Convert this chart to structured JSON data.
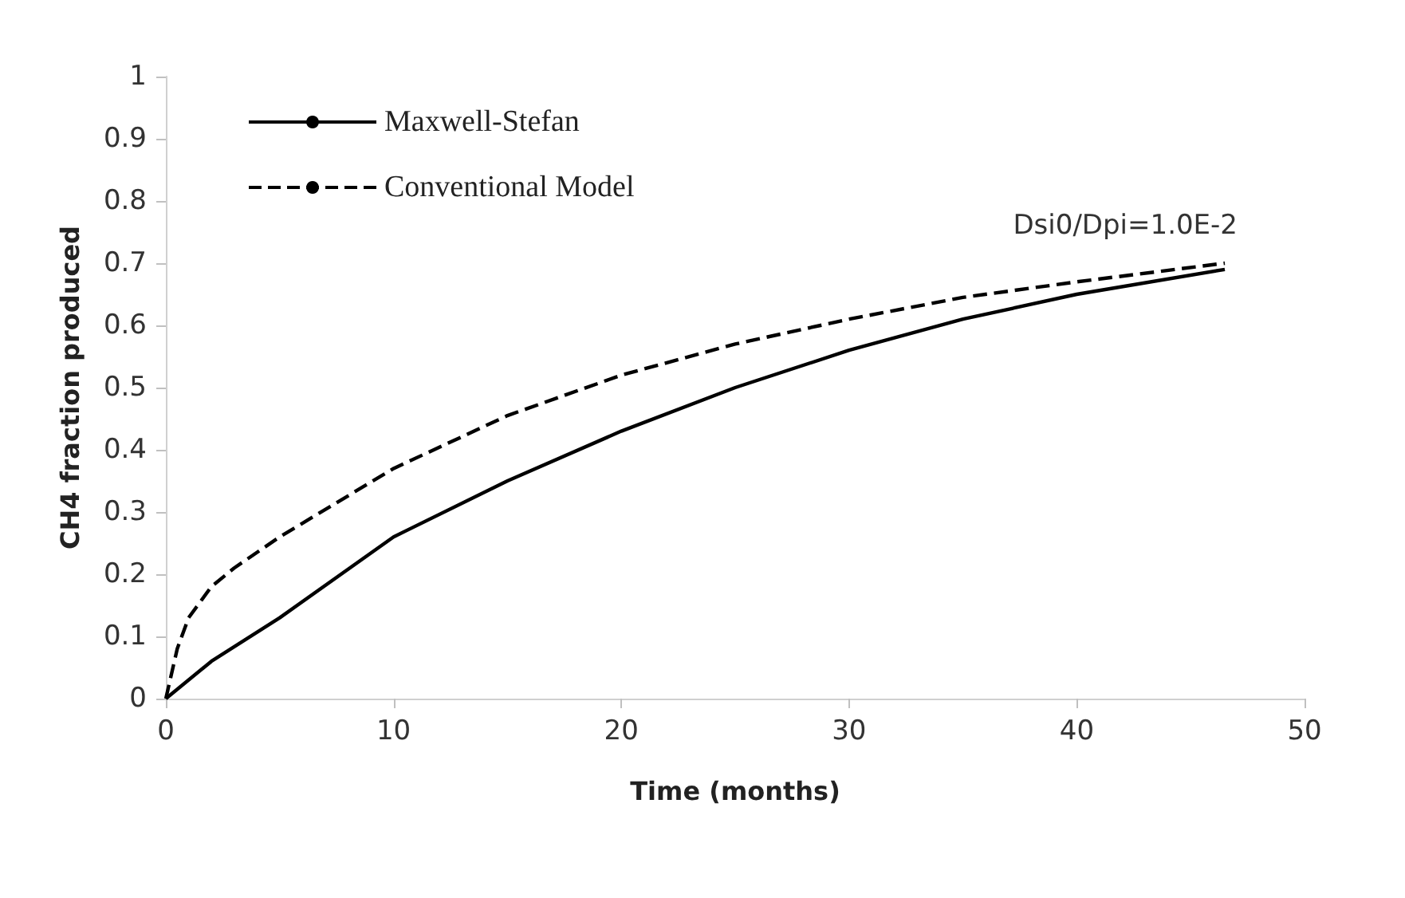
{
  "chart_data": {
    "type": "line",
    "xlabel": "Time (months)",
    "ylabel": "CH4 fraction produced",
    "annotations": [
      "Dsi0/Dpi=1.0E-2"
    ],
    "xlim": [
      0,
      50
    ],
    "xticks": [
      0,
      10,
      20,
      30,
      40,
      50
    ],
    "ylim": [
      0,
      1
    ],
    "yticks": [
      0,
      0.1,
      0.2,
      0.3,
      0.4,
      0.5,
      0.6,
      0.7,
      0.8,
      0.9,
      1
    ],
    "grid": false,
    "legend": "top left",
    "marker": "none",
    "series": [
      {
        "name": "Maxwell-Stefan",
        "color": "#000000",
        "line_style": "solid",
        "x": [
          0,
          2,
          5,
          10,
          15,
          20,
          25,
          30,
          35,
          40,
          46.5
        ],
        "values": [
          0,
          0.06,
          0.13,
          0.26,
          0.35,
          0.43,
          0.5,
          0.56,
          0.61,
          0.65,
          0.69
        ]
      },
      {
        "name": "Conventional Model",
        "color": "#000000",
        "line_style": "dashed",
        "x": [
          0,
          0.5,
          1,
          2,
          3,
          5,
          10,
          15,
          20,
          25,
          30,
          35,
          40,
          46.5
        ],
        "values": [
          0,
          0.08,
          0.13,
          0.18,
          0.21,
          0.26,
          0.37,
          0.455,
          0.52,
          0.57,
          0.61,
          0.645,
          0.67,
          0.7
        ]
      }
    ]
  }
}
